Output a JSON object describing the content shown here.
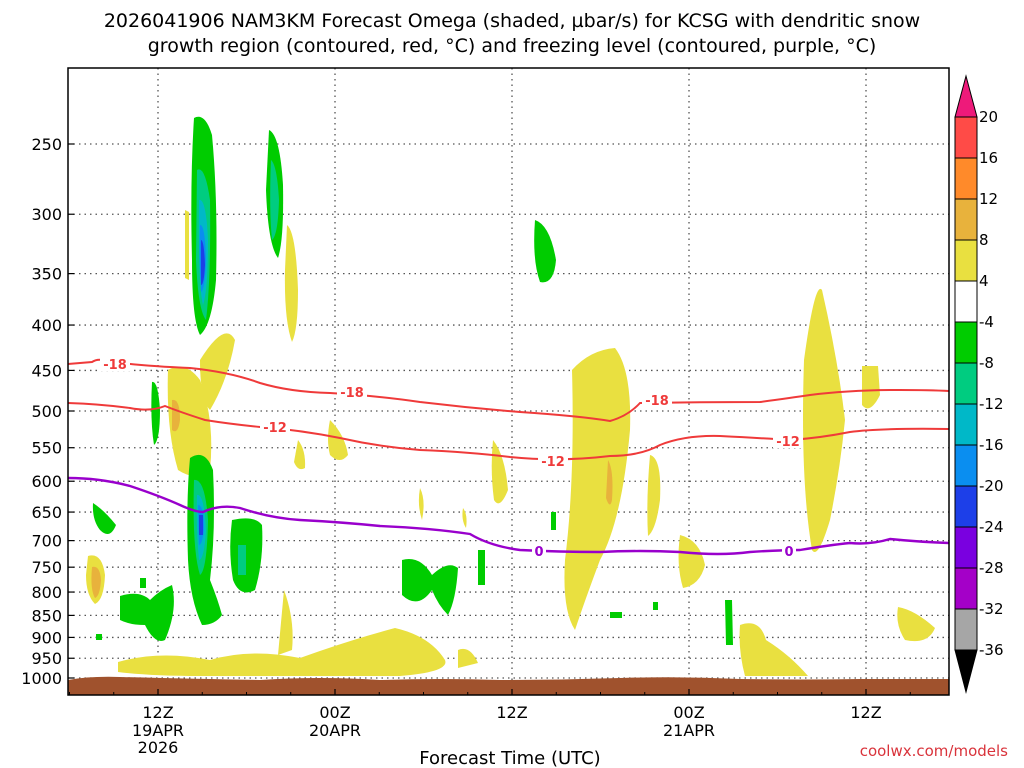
{
  "header": {
    "title_line1": "2026041906 NAM3KM Forecast Omega (shaded, µbar/s) for KCSG with dendritic snow",
    "title_line2": "growth region (contoured, red, °C) and freezing level (contoured, purple, °C)"
  },
  "footer": {
    "credit": "coolwx.com/models"
  },
  "chart_data": {
    "type": "heatmap",
    "title": "2026041906 NAM3KM Forecast Omega (shaded, µbar/s) for KCSG with dendritic snow growth region (contoured, red, °C) and freezing level (contoured, purple, °C)",
    "xlabel": "Forecast Time (UTC)",
    "ylabel": "",
    "y_axis": {
      "ticks": [
        "250",
        "300",
        "350",
        "400",
        "450",
        "500",
        "550",
        "600",
        "650",
        "700",
        "750",
        "800",
        "850",
        "900",
        "950",
        "1000"
      ],
      "log_scale": true,
      "inverted": true,
      "grid": true
    },
    "x_axis": {
      "ticks": [
        {
          "label": "12Z",
          "sub": [
            "19APR",
            "2026"
          ],
          "t": 6
        },
        {
          "label": "00Z",
          "sub": [
            "20APR"
          ],
          "t": 18
        },
        {
          "label": "12Z",
          "sub": [],
          "t": 30
        },
        {
          "label": "00Z",
          "sub": [
            "21APR"
          ],
          "t": 42
        },
        {
          "label": "12Z",
          "sub": [],
          "t": 54
        }
      ],
      "range_hours": [
        0,
        60
      ],
      "grid": true
    },
    "colorbar": {
      "labels": [
        "20",
        "16",
        "12",
        "8",
        "4",
        "-4",
        "-8",
        "-12",
        "-16",
        "-20",
        "-24",
        "-28",
        "-32",
        "-36"
      ],
      "colors": [
        "#ee1a7a",
        "#ff4b47",
        "#ff8a2a",
        "#e8b23c",
        "#e9e040",
        "#ffffff",
        "#00cc00",
        "#00cc80",
        "#00b8c8",
        "#0a8ef0",
        "#1d3fe8",
        "#7a00e0",
        "#a400c8",
        "#a6a6a6",
        "#000000"
      ],
      "orientation": "vertical",
      "position": "right"
    },
    "contours": [
      {
        "name": "-18",
        "color": "#ef3a3a",
        "labels": [
          "-18",
          "-18",
          "-18"
        ]
      },
      {
        "name": "-12",
        "color": "#ef3a3a",
        "labels": [
          "-12",
          "-12",
          "-12"
        ]
      },
      {
        "name": "0",
        "color": "#9900cc",
        "labels": [
          "0",
          "0"
        ]
      }
    ],
    "terrain_color": "#a0522d"
  }
}
